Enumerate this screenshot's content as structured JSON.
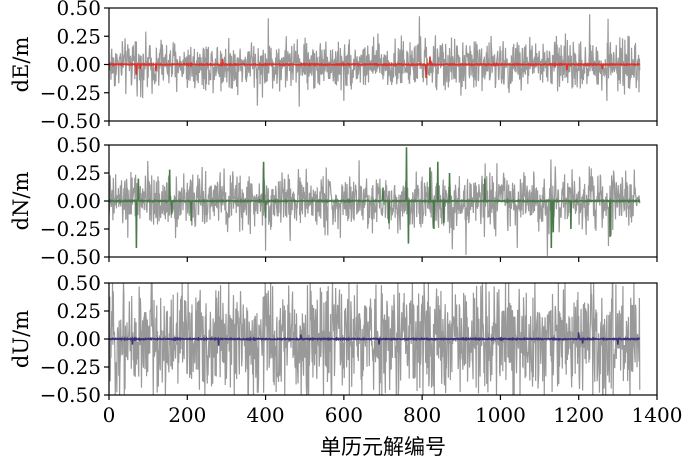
{
  "chart_data": [
    {
      "type": "line",
      "ylabel": "dE/m",
      "xlim": [
        0,
        1400
      ],
      "ylim": [
        -0.5,
        0.5
      ],
      "yticks": [
        "0.50",
        "0.25",
        "0.00",
        "−0.25",
        "−0.50"
      ],
      "ytick_values": [
        0.5,
        0.25,
        0.0,
        -0.25,
        -0.5
      ],
      "show_x_ticklabels": false,
      "n_epochs": 1357,
      "series": [
        {
          "color": "#999999",
          "amplitude": 0.2,
          "clip": 0.49
        },
        {
          "color": "#e0302a",
          "baseline": 0.0,
          "spikes": [
            [
              70,
              -0.09
            ],
            [
              80,
              -0.04
            ],
            [
              120,
              -0.06
            ],
            [
              290,
              0.05
            ],
            [
              810,
              -0.12
            ],
            [
              820,
              0.07
            ],
            [
              1170,
              -0.05
            ],
            [
              1260,
              -0.04
            ]
          ]
        }
      ]
    },
    {
      "type": "line",
      "ylabel": "dN/m",
      "xlim": [
        0,
        1400
      ],
      "ylim": [
        -0.5,
        0.5
      ],
      "yticks": [
        "0.50",
        "0.25",
        "0.00",
        "−0.25",
        "−0.50"
      ],
      "ytick_values": [
        0.5,
        0.25,
        0.0,
        -0.25,
        -0.5
      ],
      "show_x_ticklabels": false,
      "n_epochs": 1357,
      "series": [
        {
          "color": "#999999",
          "amplitude": 0.22,
          "clip": 0.49
        },
        {
          "color": "#4a7a4a",
          "baseline": 0.0,
          "spikes": [
            [
              70,
              -0.42
            ],
            [
              75,
              0.2
            ],
            [
              155,
              0.28
            ],
            [
              160,
              -0.12
            ],
            [
              210,
              -0.18
            ],
            [
              395,
              0.35
            ],
            [
              400,
              -0.15
            ],
            [
              700,
              0.12
            ],
            [
              715,
              -0.2
            ],
            [
              760,
              0.48
            ],
            [
              765,
              -0.38
            ],
            [
              820,
              0.3
            ],
            [
              830,
              -0.25
            ],
            [
              840,
              0.35
            ],
            [
              855,
              -0.2
            ],
            [
              870,
              0.25
            ],
            [
              960,
              0.2
            ],
            [
              1130,
              -0.42
            ],
            [
              1135,
              -0.28
            ],
            [
              1180,
              -0.25
            ],
            [
              1280,
              -0.32
            ]
          ]
        }
      ]
    },
    {
      "type": "line",
      "ylabel": "dU/m",
      "xlim": [
        0,
        1400
      ],
      "ylim": [
        -0.5,
        0.5
      ],
      "yticks": [
        "0.50",
        "0.25",
        "0.00",
        "−0.25",
        "−0.50"
      ],
      "ytick_values": [
        0.5,
        0.25,
        0.0,
        -0.25,
        -0.5
      ],
      "show_x_ticklabels": true,
      "xticks": [
        "0",
        "200",
        "400",
        "600",
        "800",
        "1000",
        "1200",
        "1400"
      ],
      "xtick_values": [
        0,
        200,
        400,
        600,
        800,
        1000,
        1200,
        1400
      ],
      "n_epochs": 1357,
      "series": [
        {
          "color": "#999999",
          "amplitude": 0.45,
          "clip": 0.5
        },
        {
          "color": "#3a3278",
          "baseline": 0.0,
          "spikes": [
            [
              60,
              -0.05
            ],
            [
              280,
              -0.06
            ],
            [
              490,
              0.04
            ],
            [
              690,
              -0.05
            ],
            [
              1200,
              0.06
            ],
            [
              1210,
              -0.04
            ],
            [
              1300,
              -0.05
            ]
          ]
        }
      ]
    }
  ],
  "xlabel": "单历元解编号"
}
